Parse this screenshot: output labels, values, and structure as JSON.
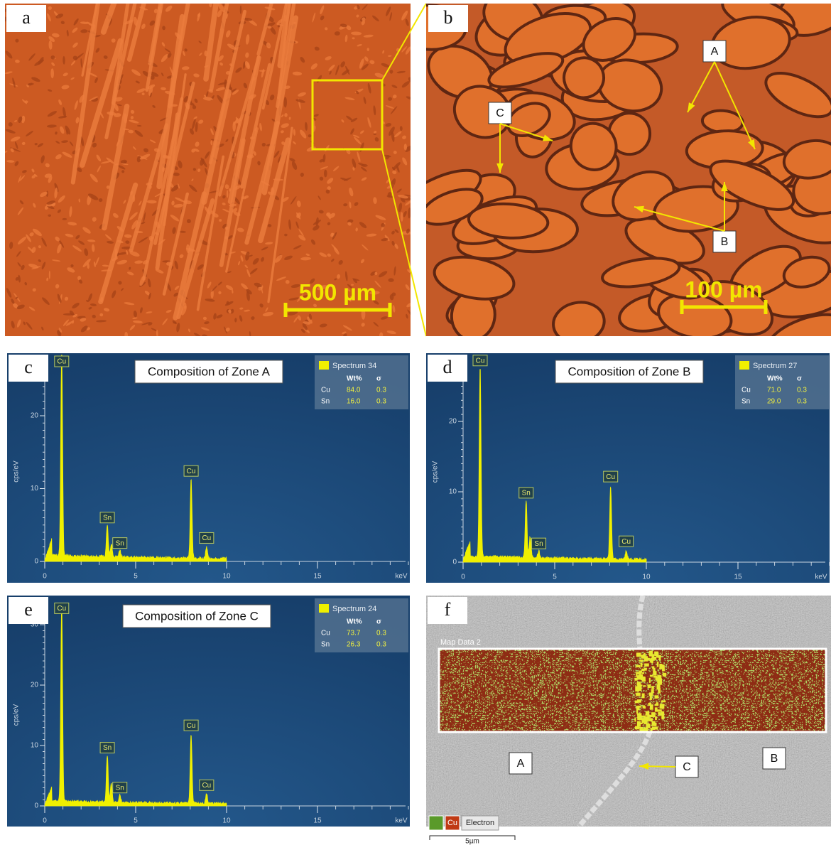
{
  "panels": [
    {
      "label": "a",
      "scale_bar": "500 µm"
    },
    {
      "label": "b",
      "scale_bar": "100 µm",
      "markers": [
        "A",
        "B",
        "C"
      ]
    },
    {
      "label": "c",
      "title": "Composition of Zone A",
      "spectrum": "Spectrum 34",
      "table_header": [
        "Wt%",
        "σ"
      ],
      "rows": [
        [
          "Cu",
          "84.0",
          "0.3"
        ],
        [
          "Sn",
          "16.0",
          "0.3"
        ]
      ],
      "y_axis": "cps/eV",
      "x_unit": "keV",
      "xticks": [
        0,
        5,
        10,
        15
      ],
      "yticks": [
        0,
        10,
        20
      ],
      "peaks": [
        "Cu",
        "Sn",
        "Sn",
        "Cu",
        "Cu"
      ]
    },
    {
      "label": "d",
      "title": "Composition of Zone B",
      "spectrum": "Spectrum 27",
      "table_header": [
        "Wt%",
        "σ"
      ],
      "rows": [
        [
          "Cu",
          "71.0",
          "0.3"
        ],
        [
          "Sn",
          "29.0",
          "0.3"
        ]
      ],
      "y_axis": "cps/eV",
      "x_unit": "keV",
      "xticks": [
        0,
        5,
        10,
        15
      ],
      "yticks": [
        0,
        10,
        20
      ],
      "peaks": [
        "Cu",
        "Sn",
        "Sn",
        "Cu",
        "Cu"
      ]
    },
    {
      "label": "e",
      "title": "Composition of Zone C",
      "spectrum": "Spectrum 24",
      "table_header": [
        "Wt%",
        "σ"
      ],
      "rows": [
        [
          "Cu",
          "73.7",
          "0.3"
        ],
        [
          "Sn",
          "26.3",
          "0.3"
        ]
      ],
      "y_axis": "cps/eV",
      "x_unit": "keV",
      "xticks": [
        0,
        5,
        10,
        15
      ],
      "yticks": [
        0,
        10,
        20,
        30
      ],
      "peaks": [
        "Cu",
        "Sn",
        "Sn",
        "Cu",
        "Cu"
      ]
    },
    {
      "label": "f",
      "map_title": "Map Data 2",
      "markers": [
        "A",
        "B",
        "C"
      ],
      "legend": [
        "Cu",
        "Electron"
      ],
      "scale_bar": "5µm"
    }
  ]
}
